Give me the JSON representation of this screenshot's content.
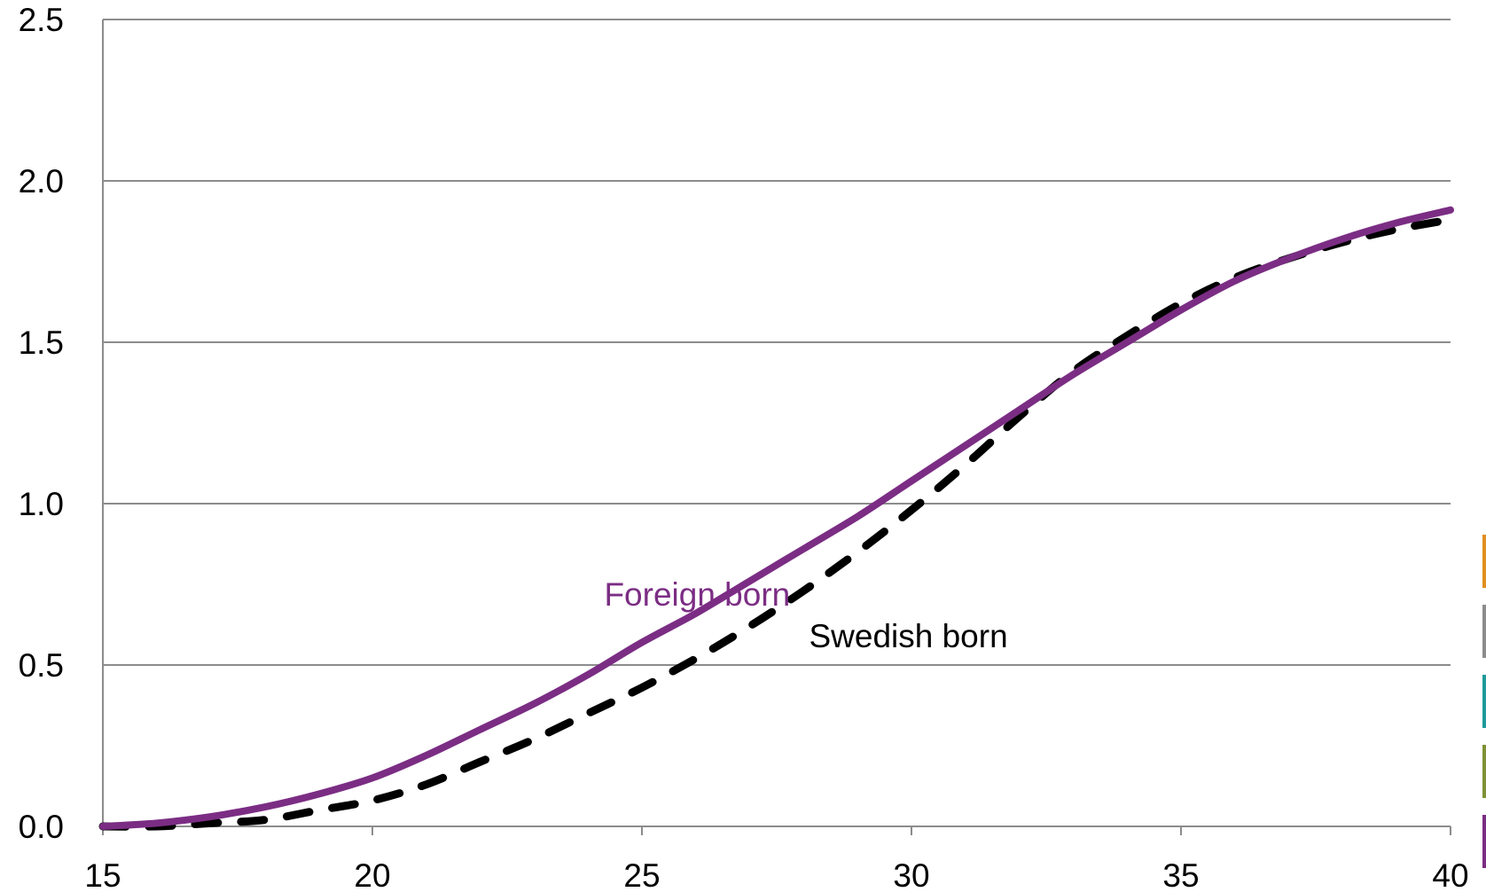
{
  "chart_data": {
    "type": "line",
    "title": "",
    "xlabel": "",
    "ylabel": "",
    "xlim": [
      15,
      40
    ],
    "ylim": [
      0,
      2.5
    ],
    "grid": true,
    "x_ticks": [
      "15",
      "20",
      "25",
      "30",
      "35",
      "40"
    ],
    "y_ticks": [
      "0.0",
      "0.5",
      "1.0",
      "1.5",
      "2.0",
      "2.5"
    ],
    "series": [
      {
        "name": "Foreign born",
        "color": "#7b2d84",
        "style": "solid",
        "x": [
          15,
          16,
          17,
          18,
          19,
          20,
          21,
          22,
          23,
          24,
          25,
          26,
          27,
          28,
          29,
          30,
          31,
          32,
          33,
          34,
          35,
          36,
          37,
          38,
          39,
          40
        ],
        "y": [
          0.0,
          0.01,
          0.03,
          0.06,
          0.1,
          0.15,
          0.22,
          0.3,
          0.38,
          0.47,
          0.57,
          0.66,
          0.76,
          0.86,
          0.96,
          1.07,
          1.18,
          1.29,
          1.4,
          1.5,
          1.6,
          1.69,
          1.76,
          1.82,
          1.87,
          1.91
        ]
      },
      {
        "name": "Swedish born",
        "color": "#000000",
        "style": "dashed",
        "x": [
          15,
          16,
          17,
          18,
          19,
          20,
          21,
          22,
          23,
          24,
          25,
          26,
          27,
          28,
          29,
          30,
          31,
          32,
          33,
          34,
          35,
          36,
          37,
          38,
          39,
          40
        ],
        "y": [
          0.0,
          0.0,
          0.01,
          0.02,
          0.05,
          0.08,
          0.13,
          0.2,
          0.27,
          0.35,
          0.43,
          0.52,
          0.62,
          0.73,
          0.85,
          0.98,
          1.12,
          1.27,
          1.41,
          1.52,
          1.62,
          1.7,
          1.76,
          1.81,
          1.85,
          1.88
        ]
      }
    ],
    "annotations": [
      {
        "text": "Foreign born",
        "series": 0,
        "x": 24.3,
        "y": 0.72
      },
      {
        "text": "Swedish born",
        "series": 1,
        "x": 28.1,
        "y": 0.59
      }
    ],
    "legend_swatches": [
      "#e0901f",
      "#8c8c8c",
      "#1f9a9a",
      "#7f9135",
      "#7b2d84"
    ]
  }
}
